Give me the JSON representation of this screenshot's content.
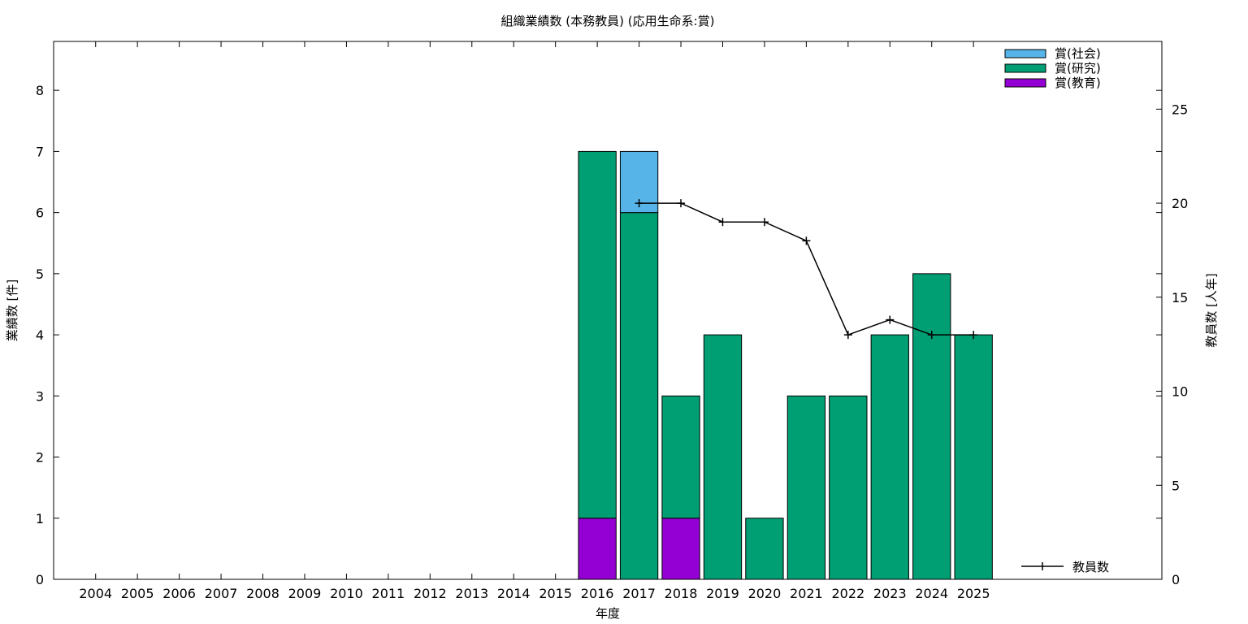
{
  "chart_data": {
    "type": "bar",
    "title": "組織業績数 (本務教員) (応用生命系:賞)",
    "xlabel": "年度",
    "ylabel": "業績数 [件]",
    "y2label": "教員数 [人年]",
    "ylim": [
      0,
      8.8
    ],
    "y2lim": [
      0,
      28.6
    ],
    "yticks": [
      0,
      1,
      2,
      3,
      4,
      5,
      6,
      7,
      8
    ],
    "y2ticks": [
      0,
      5,
      10,
      15,
      20,
      25
    ],
    "categories": [
      "2004",
      "2005",
      "2006",
      "2007",
      "2008",
      "2009",
      "2010",
      "2011",
      "2012",
      "2013",
      "2014",
      "2015",
      "2016",
      "2017",
      "2018",
      "2019",
      "2020",
      "2021",
      "2022",
      "2023",
      "2024",
      "2025"
    ],
    "stacked": true,
    "series": [
      {
        "name": "賞(教育)",
        "color": "#9400d3",
        "values": [
          0,
          0,
          0,
          0,
          0,
          0,
          0,
          0,
          0,
          0,
          0,
          0,
          1,
          0,
          1,
          0,
          0,
          0,
          0,
          0,
          0,
          0
        ]
      },
      {
        "name": "賞(研究)",
        "color": "#009e73",
        "values": [
          0,
          0,
          0,
          0,
          0,
          0,
          0,
          0,
          0,
          0,
          0,
          0,
          6,
          6,
          2,
          4,
          1,
          3,
          3,
          4,
          5,
          4
        ]
      },
      {
        "name": "賞(社会)",
        "color": "#56b4e9",
        "values": [
          0,
          0,
          0,
          0,
          0,
          0,
          0,
          0,
          0,
          0,
          0,
          0,
          0,
          1,
          0,
          0,
          0,
          0,
          0,
          0,
          0,
          0
        ]
      }
    ],
    "line": {
      "name": "教員数",
      "axis": "y2",
      "color": "#000000",
      "x": [
        "2017",
        "2018",
        "2019",
        "2020",
        "2021",
        "2022",
        "2023",
        "2024",
        "2025"
      ],
      "values": [
        20,
        20,
        19,
        19,
        18,
        13,
        13.8,
        13,
        13
      ]
    },
    "legend_bars_position": "top-right",
    "legend_line_position": "bottom-right",
    "grid": false
  }
}
